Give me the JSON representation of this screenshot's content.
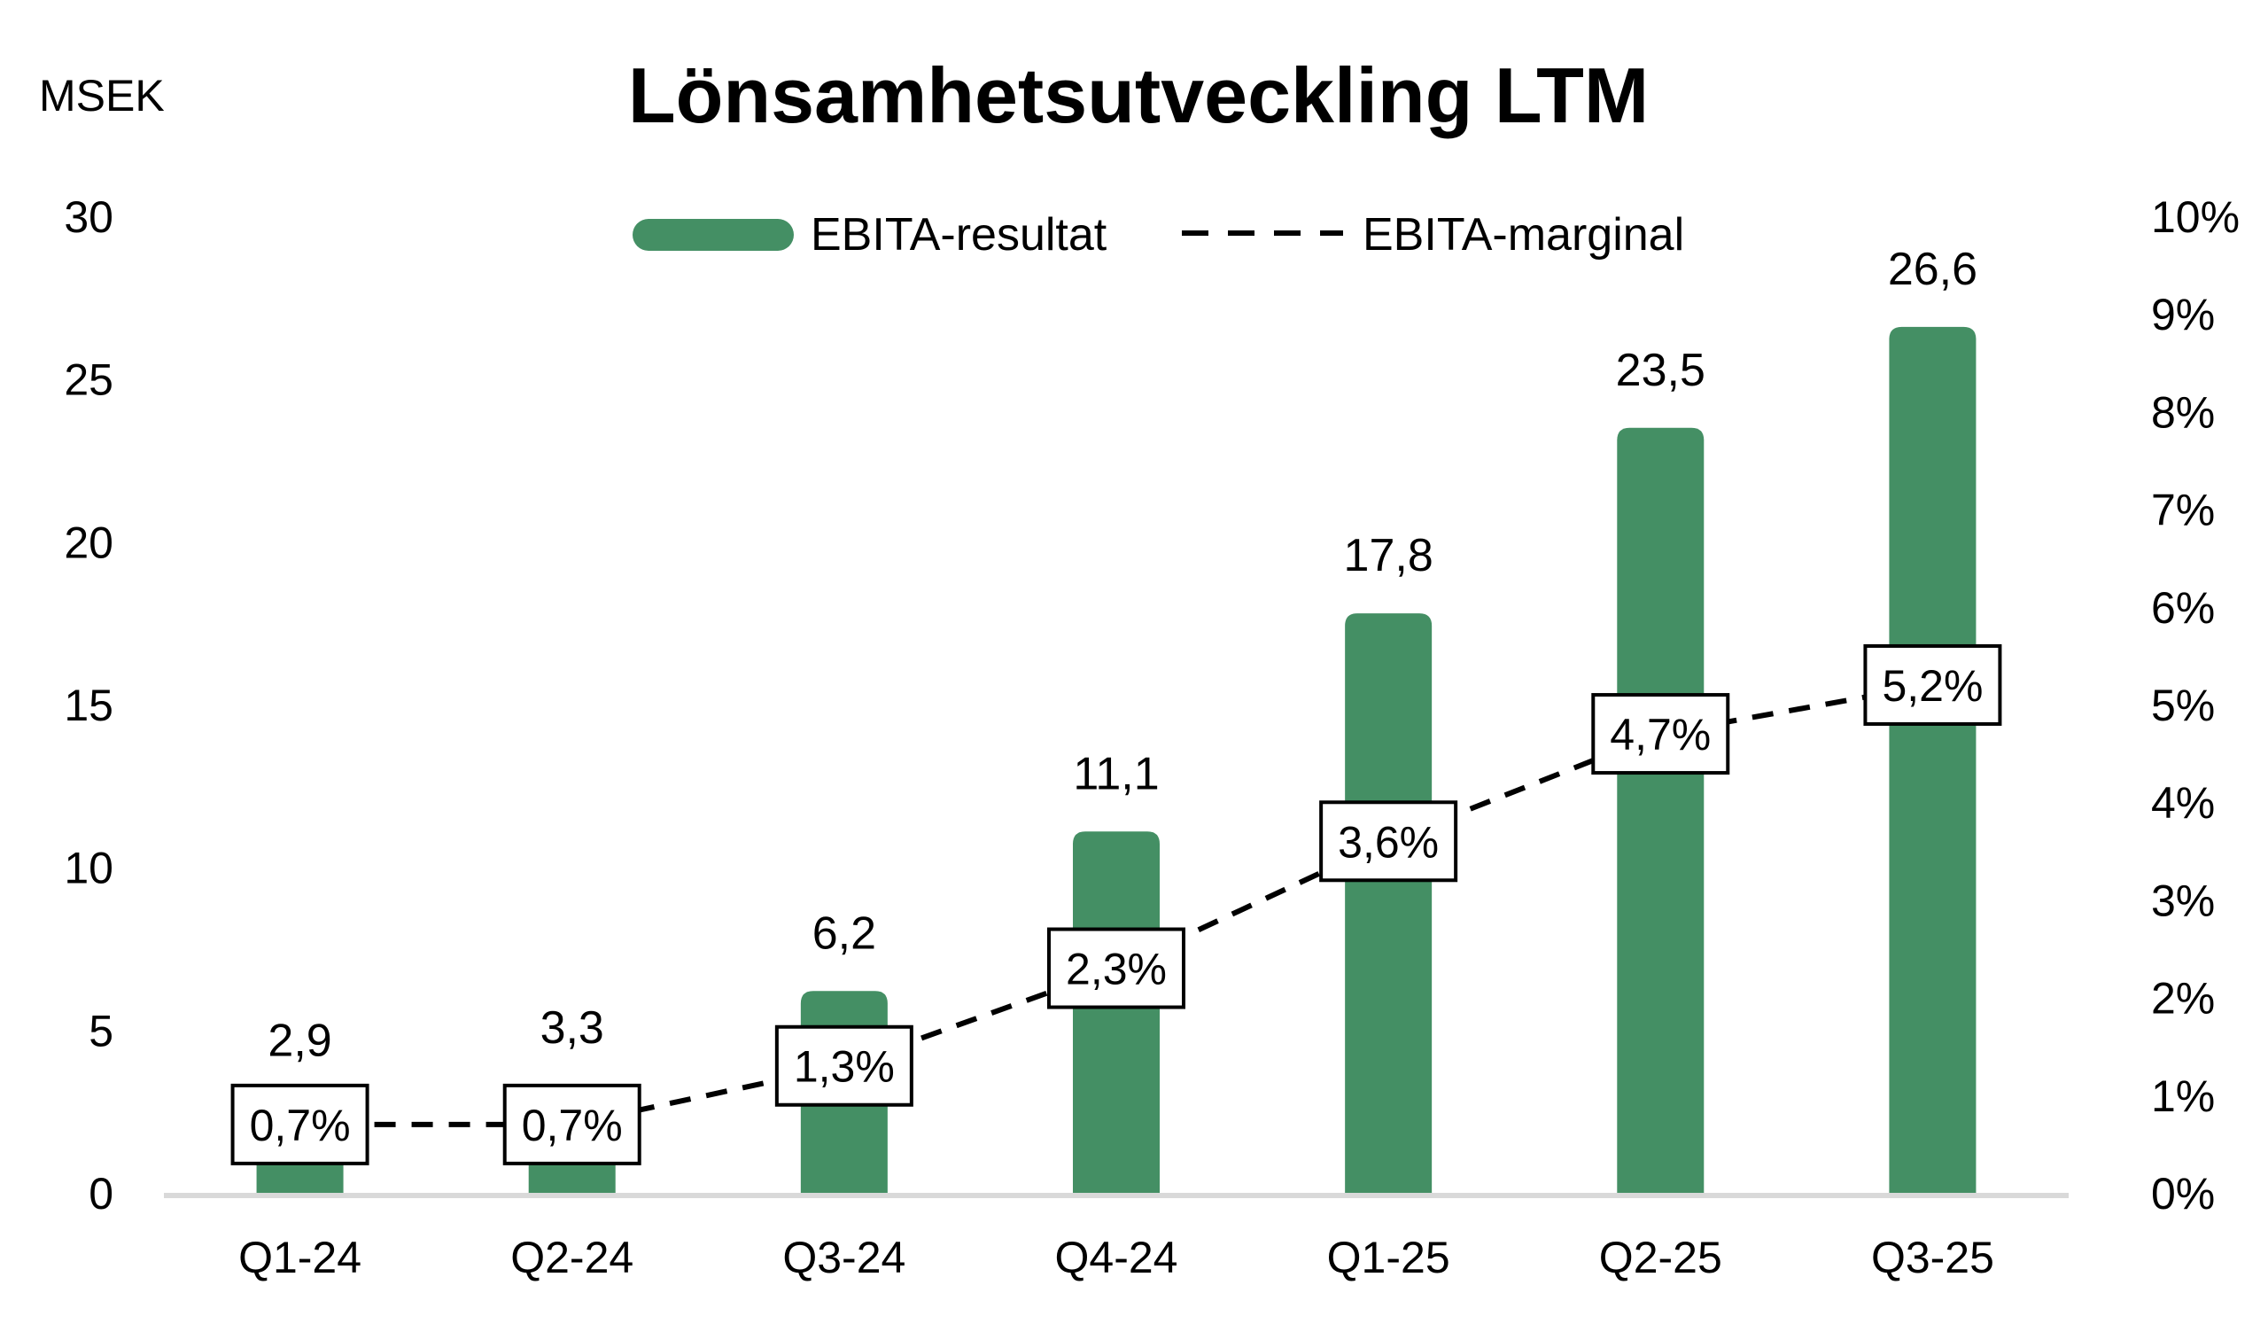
{
  "chart_data": {
    "type": "bar",
    "title": "Lönsamhetsutveckling LTM",
    "ylabel": "MSEK",
    "categories": [
      "Q1-24",
      "Q2-24",
      "Q3-24",
      "Q4-24",
      "Q1-25",
      "Q2-25",
      "Q3-25"
    ],
    "series": [
      {
        "name": "EBITA-resultat",
        "type": "bar",
        "axis": "left",
        "color": "#448F64",
        "values": [
          2.9,
          3.3,
          6.2,
          11.1,
          17.8,
          23.5,
          26.6
        ],
        "labels": [
          "2,9",
          "3,3",
          "6,2",
          "11,1",
          "17,8",
          "23,5",
          "26,6"
        ]
      },
      {
        "name": "EBITA-marginal",
        "type": "line",
        "style": "dashed",
        "axis": "right",
        "color": "#000000",
        "values": [
          0.7,
          0.7,
          1.3,
          2.3,
          3.6,
          4.7,
          5.2
        ],
        "labels": [
          "0,7%",
          "0,7%",
          "1,3%",
          "2,3%",
          "3,6%",
          "4,7%",
          "5,2%"
        ]
      }
    ],
    "y_left": {
      "min": 0,
      "max": 30,
      "ticks": [
        0,
        5,
        10,
        15,
        20,
        25,
        30
      ],
      "tick_labels": [
        "0",
        "5",
        "10",
        "15",
        "20",
        "25",
        "30"
      ]
    },
    "y_right": {
      "min": 0,
      "max": 10,
      "ticks": [
        0,
        1,
        2,
        3,
        4,
        5,
        6,
        7,
        8,
        9,
        10
      ],
      "tick_labels": [
        "0%",
        "1%",
        "2%",
        "3%",
        "4%",
        "5%",
        "6%",
        "7%",
        "8%",
        "9%",
        "10%"
      ]
    },
    "grid": false,
    "legend_position": "top-center"
  }
}
